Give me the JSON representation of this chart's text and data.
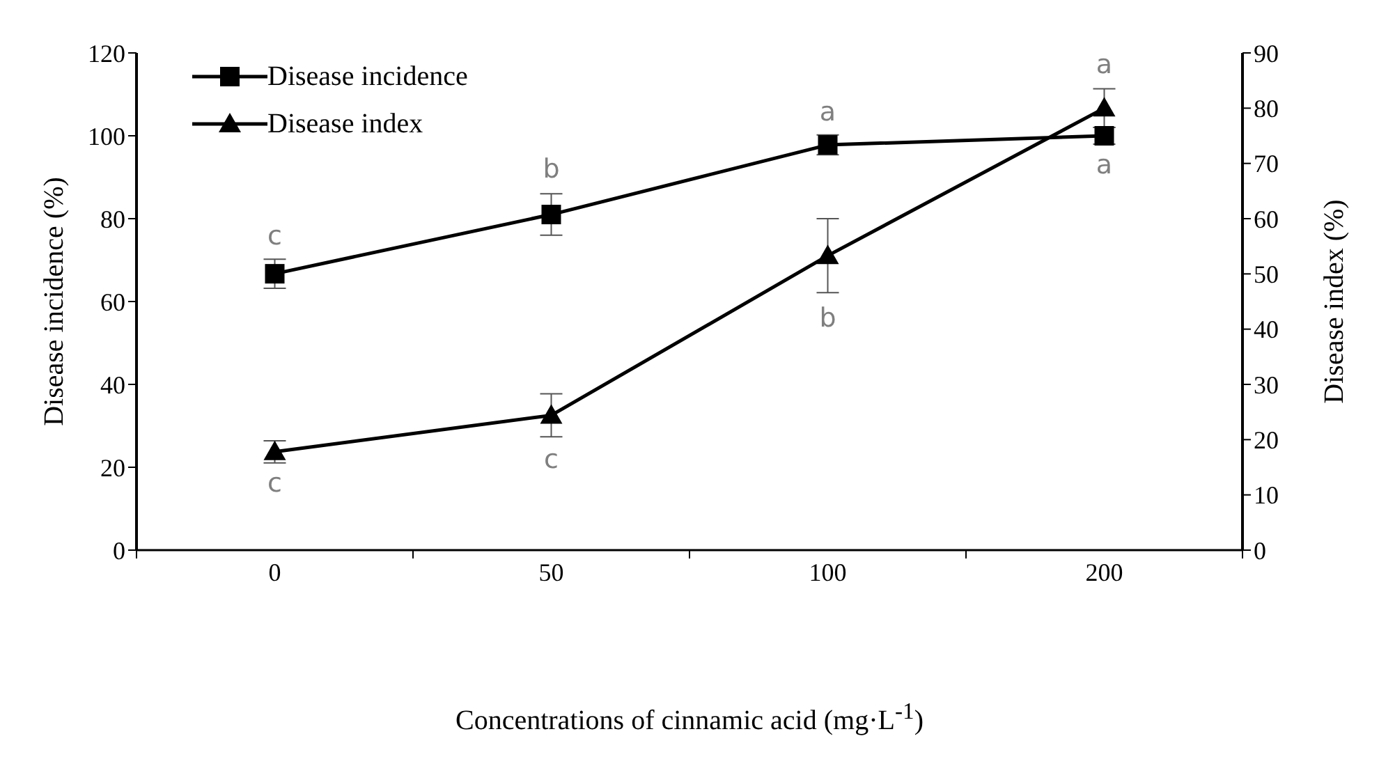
{
  "chart_data": {
    "type": "line",
    "xlabel": "Concentrations of cinnamic acid (mg·L$^{-1}$)",
    "ylabel": "Disease incidence (%)",
    "y2label": "Disease index (%)",
    "categories": [
      "0",
      "50",
      "100",
      "200"
    ],
    "series": [
      {
        "name": "Disease incidence",
        "color": "#000000",
        "marker": "square",
        "values": [
          66.7,
          81,
          97.8,
          100
        ],
        "errors": [
          3.5,
          5,
          2.4,
          2
        ],
        "value_labels": [
          "c",
          "b",
          "a",
          "a"
        ]
      },
      {
        "name": "Disease index",
        "color": "#000000",
        "marker": "triangle",
        "axis": "y2",
        "values": [
          17.8,
          24.4,
          53.3,
          80
        ],
        "errors": [
          2,
          3.9,
          6.7,
          3.5
        ],
        "value_labels": [
          "c",
          "c",
          "b",
          "a"
        ]
      }
    ],
    "ylim": [
      0,
      120
    ],
    "yticks": [
      0,
      20,
      40,
      60,
      80,
      100,
      120
    ],
    "y2lim": [
      0,
      90
    ],
    "y2ticks": [
      0,
      10,
      20,
      30,
      40,
      50,
      60,
      70,
      80,
      90
    ],
    "grid": false,
    "legend": "top left",
    "line_style": "solid"
  }
}
